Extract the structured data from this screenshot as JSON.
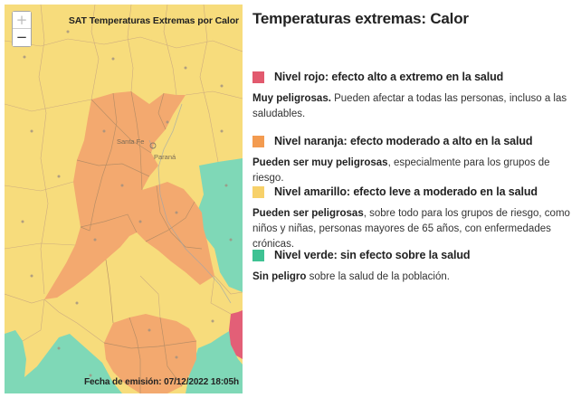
{
  "map": {
    "title": "SAT Temperaturas Extremas por Calor",
    "footer": "Fecha de emisión: 07/12/2022 18:05h",
    "zoom_in_label": "+",
    "zoom_out_label": "−",
    "place_labels": [
      "Santa Fe",
      "Paraná"
    ],
    "colors": {
      "rojo": "#e35f77",
      "naranja": "#f3a96f",
      "amarillo": "#f7dc7c",
      "verde": "#7fd8b7",
      "boundary": "#c9a77f"
    }
  },
  "panel": {
    "title": "Temperaturas extremas: Calor",
    "levels": [
      {
        "color": "#e25a6e",
        "title": "Nivel rojo: efecto alto a extremo en la salud",
        "desc_bold": "Muy peligrosas.",
        "desc_rest": " Pueden afectar a todas las personas, incluso a las saludables."
      },
      {
        "color": "#f39b50",
        "title": "Nivel naranja: efecto moderado a alto en la salud",
        "desc_bold": "Pueden ser muy peligrosas",
        "desc_rest": ", especialmente para los grupos de riesgo."
      },
      {
        "color": "#f7d16a",
        "title": "Nivel amarillo: efecto leve a moderado en la salud",
        "desc_bold": "Pueden ser peligrosas",
        "desc_rest": ", sobre todo para los grupos de riesgo, como niños y niñas, personas mayores de 65 años, con enfermedades crónicas."
      },
      {
        "color": "#3fc293",
        "title": "Nivel verde: sin efecto sobre la salud",
        "desc_bold": "Sin peligro",
        "desc_rest": " sobre la salud de la población."
      }
    ]
  }
}
